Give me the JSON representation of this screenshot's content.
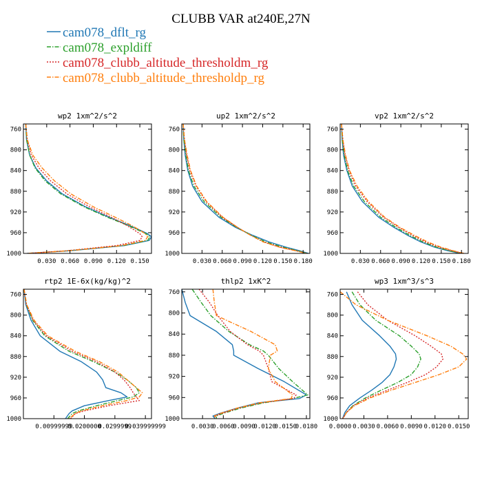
{
  "title": "CLUBB VAR at240E,27N",
  "legend": [
    {
      "name": "cam078_dflt_rg",
      "color": "#1f77b4",
      "dash": "solid"
    },
    {
      "name": "cam078_expldiff",
      "color": "#2ca02c",
      "dash": "dashdot"
    },
    {
      "name": "cam078_clubb_altitude_thresholdm_rg",
      "color": "#d62728",
      "dash": "dot"
    },
    {
      "name": "cam078_clubb_altitude_thresholdp_rg",
      "color": "#ff7f0e",
      "dash": "dashdot"
    }
  ],
  "chart_data": [
    {
      "type": "line",
      "title": "wp2   1xm^2/s^2",
      "xlim": [
        0,
        0.165
      ],
      "ylim": [
        750,
        1000
      ],
      "xticks": [
        0.03,
        0.06,
        0.09,
        0.12,
        0.15
      ],
      "xtick_labels": [
        "0.030",
        "0.060",
        "0.090",
        "0.120",
        "0.150"
      ],
      "yticks": [
        760,
        800,
        840,
        880,
        920,
        960,
        1000
      ],
      "y": [
        750,
        780,
        810,
        835,
        860,
        885,
        910,
        930,
        945,
        955,
        962,
        968,
        975,
        985,
        995,
        1000
      ],
      "series": [
        {
          "name": "cam078_dflt_rg",
          "x": [
            0.003,
            0.004,
            0.008,
            0.016,
            0.03,
            0.05,
            0.08,
            0.11,
            0.135,
            0.15,
            0.16,
            0.165,
            0.162,
            0.13,
            0.06,
            0.005
          ]
        },
        {
          "name": "cam078_expldiff",
          "x": [
            0.003,
            0.004,
            0.008,
            0.015,
            0.028,
            0.048,
            0.078,
            0.108,
            0.133,
            0.148,
            0.158,
            0.163,
            0.16,
            0.128,
            0.058,
            0.005
          ]
        },
        {
          "name": "cam078_clubb_altitude_thresholdm_rg",
          "x": [
            0.003,
            0.005,
            0.01,
            0.02,
            0.035,
            0.056,
            0.085,
            0.113,
            0.132,
            0.143,
            0.15,
            0.153,
            0.15,
            0.12,
            0.055,
            0.005
          ]
        },
        {
          "name": "cam078_clubb_altitude_thresholdp_rg",
          "x": [
            0.003,
            0.005,
            0.012,
            0.024,
            0.04,
            0.061,
            0.09,
            0.118,
            0.138,
            0.15,
            0.157,
            0.16,
            0.157,
            0.126,
            0.058,
            0.005
          ]
        }
      ]
    },
    {
      "type": "line",
      "title": "up2   1xm^2/s^2",
      "xlim": [
        0,
        0.19
      ],
      "ylim": [
        750,
        1000
      ],
      "xticks": [
        0.03,
        0.06,
        0.09,
        0.12,
        0.15,
        0.18
      ],
      "xtick_labels": [
        "0.030",
        "0.060",
        "0.090",
        "0.120",
        "0.150",
        "0.180"
      ],
      "yticks": [
        760,
        800,
        840,
        880,
        920,
        960,
        1000
      ],
      "y": [
        750,
        780,
        810,
        840,
        870,
        900,
        930,
        950,
        965,
        978,
        988,
        995,
        1000
      ],
      "series": [
        {
          "name": "cam078_dflt_rg",
          "x": [
            0.002,
            0.003,
            0.005,
            0.009,
            0.016,
            0.03,
            0.055,
            0.08,
            0.105,
            0.13,
            0.155,
            0.175,
            0.188
          ]
        },
        {
          "name": "cam078_expldiff",
          "x": [
            0.002,
            0.003,
            0.006,
            0.01,
            0.018,
            0.033,
            0.058,
            0.082,
            0.103,
            0.125,
            0.15,
            0.172,
            0.186
          ]
        },
        {
          "name": "cam078_clubb_altitude_thresholdm_rg",
          "x": [
            0.002,
            0.004,
            0.007,
            0.012,
            0.021,
            0.036,
            0.06,
            0.083,
            0.102,
            0.122,
            0.146,
            0.17,
            0.185
          ]
        },
        {
          "name": "cam078_clubb_altitude_thresholdp_rg",
          "x": [
            0.002,
            0.004,
            0.008,
            0.013,
            0.022,
            0.037,
            0.061,
            0.083,
            0.102,
            0.121,
            0.145,
            0.169,
            0.185
          ]
        }
      ]
    },
    {
      "type": "line",
      "title": "vp2   1xm^2/s^2",
      "xlim": [
        0,
        0.19
      ],
      "ylim": [
        750,
        1000
      ],
      "xticks": [
        0.03,
        0.06,
        0.09,
        0.12,
        0.15,
        0.18
      ],
      "xtick_labels": [
        "0.030",
        "0.060",
        "0.090",
        "0.120",
        "0.150",
        "0.180"
      ],
      "yticks": [
        760,
        800,
        840,
        880,
        920,
        960,
        1000
      ],
      "y": [
        750,
        780,
        810,
        840,
        870,
        900,
        930,
        950,
        965,
        978,
        988,
        995,
        1000
      ],
      "series": [
        {
          "name": "cam078_dflt_rg",
          "x": [
            0.002,
            0.003,
            0.005,
            0.01,
            0.018,
            0.033,
            0.057,
            0.08,
            0.1,
            0.12,
            0.14,
            0.16,
            0.178
          ]
        },
        {
          "name": "cam078_expldiff",
          "x": [
            0.002,
            0.003,
            0.006,
            0.011,
            0.02,
            0.036,
            0.06,
            0.083,
            0.103,
            0.123,
            0.143,
            0.162,
            0.18
          ]
        },
        {
          "name": "cam078_clubb_altitude_thresholdm_rg",
          "x": [
            0.002,
            0.004,
            0.007,
            0.013,
            0.023,
            0.04,
            0.064,
            0.087,
            0.107,
            0.127,
            0.147,
            0.166,
            0.182
          ]
        },
        {
          "name": "cam078_clubb_altitude_thresholdp_rg",
          "x": [
            0.002,
            0.004,
            0.008,
            0.014,
            0.025,
            0.042,
            0.066,
            0.089,
            0.11,
            0.13,
            0.15,
            0.168,
            0.184
          ]
        }
      ]
    },
    {
      "type": "line",
      "title": "rtp2   1E-6x(kg/kg)^2",
      "xlim": [
        0,
        0.042
      ],
      "ylim": [
        750,
        1000
      ],
      "xticks": [
        0.01,
        0.02,
        0.03,
        0.04
      ],
      "xtick_labels": [
        "0.00999999",
        "0.0200000",
        "0.0299999",
        "0.0399999"
      ],
      "xtick_label_tail": "99",
      "yticks": [
        760,
        800,
        840,
        880,
        920,
        960,
        1000
      ],
      "y": [
        750,
        780,
        810,
        840,
        870,
        890,
        910,
        925,
        940,
        950,
        958,
        965,
        975,
        985,
        990,
        1000
      ],
      "series": [
        {
          "name": "cam078_dflt_rg",
          "x": [
            0.0002,
            0.0008,
            0.0025,
            0.0055,
            0.012,
            0.019,
            0.024,
            0.026,
            0.027,
            0.032,
            0.034,
            0.028,
            0.02,
            0.016,
            0.015,
            0.0138
          ]
        },
        {
          "name": "cam078_expldiff",
          "x": [
            0.0002,
            0.001,
            0.003,
            0.007,
            0.015,
            0.023,
            0.03,
            0.034,
            0.037,
            0.038,
            0.036,
            0.031,
            0.024,
            0.018,
            0.016,
            0.0145
          ]
        },
        {
          "name": "cam078_clubb_altitude_thresholdm_rg",
          "x": [
            0.0002,
            0.001,
            0.0032,
            0.0075,
            0.016,
            0.024,
            0.03,
            0.033,
            0.035,
            0.036,
            0.037,
            0.038,
            0.028,
            0.02,
            0.017,
            0.0155
          ]
        },
        {
          "name": "cam078_clubb_altitude_thresholdp_rg",
          "x": [
            0.0002,
            0.0011,
            0.0035,
            0.008,
            0.017,
            0.025,
            0.031,
            0.034,
            0.037,
            0.039,
            0.038,
            0.034,
            0.026,
            0.019,
            0.017,
            0.015
          ]
        }
      ]
    },
    {
      "type": "line",
      "title": "thlp2   1xK^2",
      "xlim": [
        0,
        0.0185
      ],
      "ylim": [
        755,
        1000
      ],
      "xticks": [
        0.003,
        0.006,
        0.009,
        0.012,
        0.015,
        0.018
      ],
      "xtick_labels": [
        "0.0030",
        "0.0060",
        "0.0090",
        "0.0120",
        "0.0150",
        "0.0180"
      ],
      "yticks": [
        760,
        800,
        840,
        880,
        920,
        960,
        1000
      ],
      "y": [
        755,
        780,
        805,
        835,
        860,
        872,
        880,
        905,
        930,
        955,
        962,
        970,
        980,
        990,
        995,
        1000
      ],
      "series": [
        {
          "name": "cam078_dflt_rg",
          "x": [
            0.0,
            0.0005,
            0.0012,
            0.005,
            0.0073,
            0.0075,
            0.0075,
            0.011,
            0.0148,
            0.018,
            0.017,
            0.011,
            0.008,
            0.0055,
            0.0045,
            0.0048
          ]
        },
        {
          "name": "cam078_expldiff",
          "x": [
            0.0015,
            0.0028,
            0.0042,
            0.0068,
            0.0098,
            0.0118,
            0.0125,
            0.014,
            0.016,
            0.0182,
            0.016,
            0.0118,
            0.0085,
            0.006,
            0.005,
            0.005
          ]
        },
        {
          "name": "cam078_clubb_altitude_thresholdm_rg",
          "x": [
            0.0025,
            0.004,
            0.0052,
            0.007,
            0.0095,
            0.0112,
            0.0118,
            0.0125,
            0.013,
            0.0165,
            0.0162,
            0.0115,
            0.0082,
            0.0058,
            0.0048,
            0.005
          ]
        },
        {
          "name": "cam078_clubb_altitude_thresholdp_rg",
          "x": [
            0.0045,
            0.0047,
            0.005,
            0.01,
            0.0135,
            0.0138,
            0.0128,
            0.0125,
            0.0135,
            0.016,
            0.0158,
            0.0112,
            0.008,
            0.0056,
            0.0047,
            0.005
          ]
        }
      ]
    },
    {
      "type": "line",
      "title": "wp3   1xm^3/s^3",
      "xlim": [
        0,
        0.0162
      ],
      "ylim": [
        750,
        1000
      ],
      "xticks": [
        0.0,
        0.003,
        0.006,
        0.009,
        0.012,
        0.015
      ],
      "xtick_labels": [
        "0.0000",
        "0.0030",
        "0.0060",
        "0.0090",
        "0.0120",
        "0.0150"
      ],
      "yticks": [
        760,
        800,
        840,
        880,
        920,
        960,
        1000
      ],
      "y": [
        755,
        780,
        810,
        840,
        860,
        875,
        885,
        900,
        915,
        930,
        945,
        960,
        975,
        988,
        996,
        1000
      ],
      "series": [
        {
          "name": "cam078_dflt_rg",
          "x": [
            0.0008,
            0.0015,
            0.0028,
            0.005,
            0.0063,
            0.007,
            0.0071,
            0.0068,
            0.0063,
            0.0053,
            0.004,
            0.0025,
            0.0012,
            0.0006,
            0.0004,
            0.0003
          ]
        },
        {
          "name": "cam078_expldiff",
          "x": [
            0.0015,
            0.0025,
            0.0045,
            0.0075,
            0.009,
            0.01,
            0.0102,
            0.0098,
            0.009,
            0.0073,
            0.0052,
            0.0032,
            0.0016,
            0.0008,
            0.0005,
            0.0003
          ]
        },
        {
          "name": "cam078_clubb_altitude_thresholdm_rg",
          "x": [
            0.0022,
            0.0035,
            0.006,
            0.0095,
            0.0115,
            0.0128,
            0.013,
            0.0122,
            0.0108,
            0.0085,
            0.006,
            0.0035,
            0.0017,
            0.0008,
            0.0005,
            0.0003
          ]
        },
        {
          "name": "cam078_clubb_altitude_thresholdp_rg",
          "x": [
            0.0,
            0.002,
            0.006,
            0.011,
            0.014,
            0.0155,
            0.016,
            0.015,
            0.0125,
            0.0095,
            0.0065,
            0.0038,
            0.0018,
            0.0008,
            0.0005,
            0.0003
          ]
        }
      ]
    }
  ]
}
